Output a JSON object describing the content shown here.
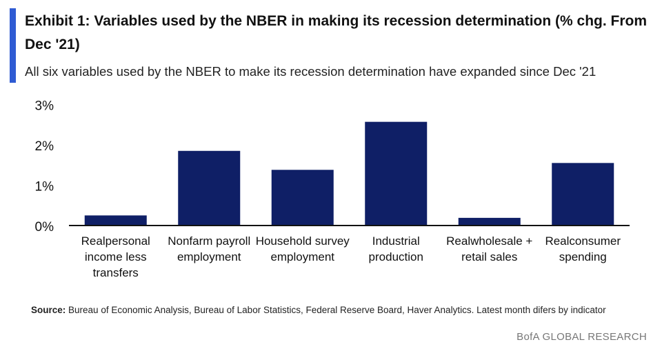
{
  "header": {
    "title": "Exhibit 1: Variables used by the NBER in making its recession determination (% chg. From Dec '21)",
    "subtitle": "All six variables used by the NBER to make its recession determination have expanded since Dec '21"
  },
  "footer": {
    "source_label": "Source:",
    "source_text": "Bureau of Economic Analysis, Bureau of Labor Statistics, Federal Reserve Board, Haver Analytics. Latest month difers by indicator",
    "brand": "BofA GLOBAL RESEARCH"
  },
  "colors": {
    "bar": "#0f1f66",
    "accent": "#2f5bd3"
  },
  "chart_data": {
    "type": "bar",
    "categories": [
      [
        "Realpersonal",
        "income less",
        "transfers"
      ],
      [
        "Nonfarm payroll",
        "employment"
      ],
      [
        "Household survey",
        "employment"
      ],
      [
        "Industrial",
        "production"
      ],
      [
        "Realwholesale +",
        "retail sales"
      ],
      [
        "Realconsumer",
        "spending"
      ]
    ],
    "values": [
      0.25,
      1.85,
      1.38,
      2.57,
      0.19,
      1.55
    ],
    "yticks": [
      "0%",
      "1%",
      "2%",
      "3%"
    ],
    "ytick_values": [
      0,
      1,
      2,
      3
    ],
    "ylim": [
      0,
      3
    ],
    "xlabel": "",
    "ylabel": "",
    "grid": false
  }
}
